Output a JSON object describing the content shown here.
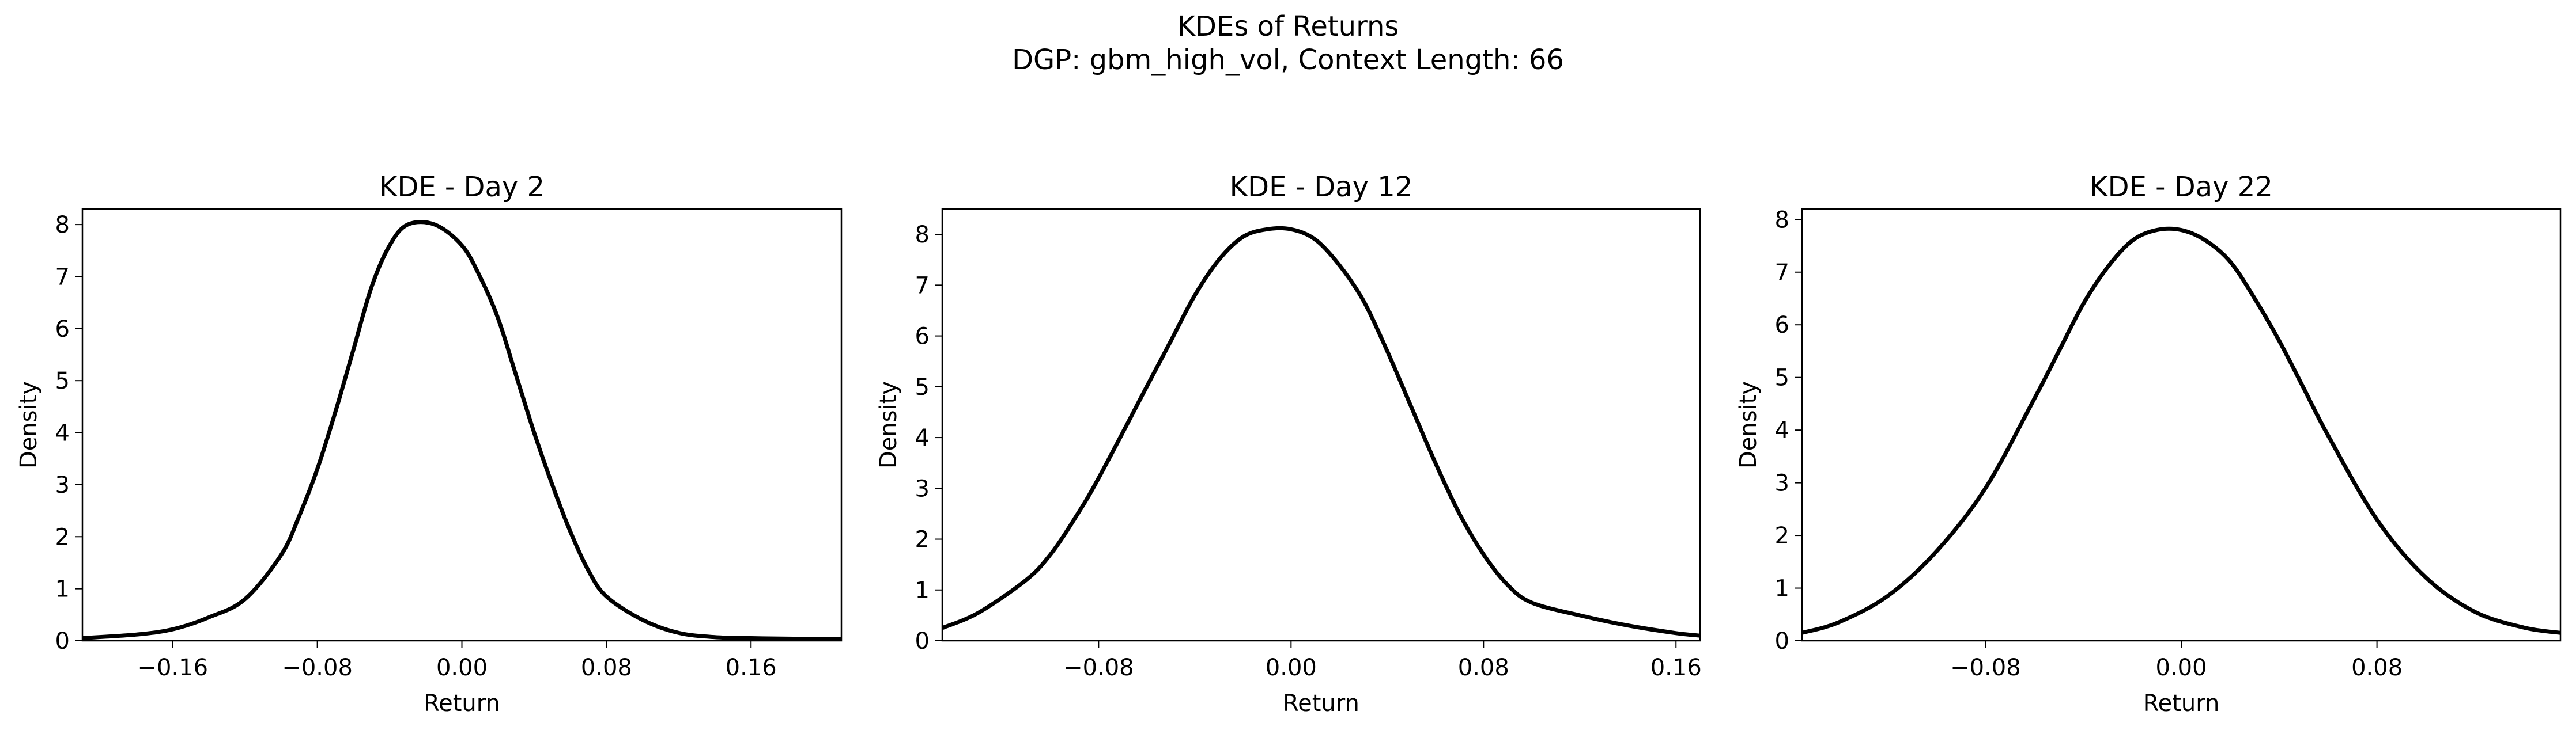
{
  "figure": {
    "title_line1": "KDEs of Returns",
    "title_line2": "DGP: gbm_high_vol, Context Length: 66"
  },
  "chart_data": [
    {
      "type": "line",
      "title": "KDE - Day 2",
      "xlabel": "Return",
      "ylabel": "Density",
      "xlim": [
        -0.21,
        0.21
      ],
      "ylim": [
        0,
        8.3
      ],
      "xticks": [
        -0.16,
        -0.08,
        0.0,
        0.08,
        0.16
      ],
      "xtick_labels": [
        "−0.16",
        "−0.08",
        "0.00",
        "0.08",
        "0.16"
      ],
      "yticks": [
        0,
        1,
        2,
        3,
        4,
        5,
        6,
        7,
        8
      ],
      "ytick_labels": [
        "0",
        "1",
        "2",
        "3",
        "4",
        "5",
        "6",
        "7",
        "8"
      ],
      "grid": false,
      "series": [
        {
          "color": "#000000",
          "x": [
            -0.21,
            -0.18,
            -0.16,
            -0.14,
            -0.12,
            -0.1,
            -0.09,
            -0.08,
            -0.07,
            -0.06,
            -0.05,
            -0.04,
            -0.03,
            -0.015,
            0.0,
            0.01,
            0.02,
            0.03,
            0.04,
            0.05,
            0.06,
            0.07,
            0.08,
            0.1,
            0.12,
            0.14,
            0.16,
            0.18,
            0.21
          ],
          "y": [
            0.05,
            0.12,
            0.22,
            0.45,
            0.8,
            1.65,
            2.4,
            3.3,
            4.4,
            5.6,
            6.8,
            7.6,
            8.0,
            8.0,
            7.6,
            7.0,
            6.2,
            5.1,
            4.0,
            3.0,
            2.1,
            1.35,
            0.85,
            0.4,
            0.15,
            0.07,
            0.05,
            0.04,
            0.03
          ]
        }
      ]
    },
    {
      "type": "line",
      "title": "KDE - Day 12",
      "xlabel": "Return",
      "ylabel": "Density",
      "xlim": [
        -0.145,
        0.17
      ],
      "ylim": [
        0,
        8.5
      ],
      "xticks": [
        -0.08,
        0.0,
        0.08,
        0.16
      ],
      "xtick_labels": [
        "−0.08",
        "0.00",
        "0.08",
        "0.16"
      ],
      "yticks": [
        0,
        1,
        2,
        3,
        4,
        5,
        6,
        7,
        8
      ],
      "ytick_labels": [
        "0",
        "1",
        "2",
        "3",
        "4",
        "5",
        "6",
        "7",
        "8"
      ],
      "grid": false,
      "series": [
        {
          "color": "#000000",
          "x": [
            -0.145,
            -0.13,
            -0.11,
            -0.1,
            -0.09,
            -0.08,
            -0.06,
            -0.05,
            -0.04,
            -0.03,
            -0.02,
            -0.01,
            0.0,
            0.01,
            0.02,
            0.03,
            0.04,
            0.05,
            0.06,
            0.07,
            0.08,
            0.09,
            0.1,
            0.12,
            0.14,
            0.16,
            0.17
          ],
          "y": [
            0.25,
            0.55,
            1.2,
            1.7,
            2.4,
            3.2,
            5.0,
            5.9,
            6.8,
            7.5,
            7.95,
            8.1,
            8.1,
            7.9,
            7.4,
            6.7,
            5.7,
            4.6,
            3.5,
            2.5,
            1.7,
            1.1,
            0.75,
            0.5,
            0.3,
            0.15,
            0.1
          ]
        }
      ]
    },
    {
      "type": "line",
      "title": "KDE - Day 22",
      "xlabel": "Return",
      "ylabel": "Density",
      "xlim": [
        -0.155,
        0.155
      ],
      "ylim": [
        0,
        8.2
      ],
      "xticks": [
        -0.08,
        0.0,
        0.08
      ],
      "xtick_labels": [
        "−0.08",
        "0.00",
        "0.08"
      ],
      "yticks": [
        0,
        1,
        2,
        3,
        4,
        5,
        6,
        7,
        8
      ],
      "ytick_labels": [
        "0",
        "1",
        "2",
        "3",
        "4",
        "5",
        "6",
        "7",
        "8"
      ],
      "grid": false,
      "series": [
        {
          "color": "#000000",
          "x": [
            -0.155,
            -0.14,
            -0.12,
            -0.1,
            -0.08,
            -0.06,
            -0.05,
            -0.04,
            -0.03,
            -0.02,
            -0.01,
            0.0,
            0.01,
            0.02,
            0.03,
            0.04,
            0.05,
            0.06,
            0.08,
            0.1,
            0.12,
            0.14,
            0.155
          ],
          "y": [
            0.15,
            0.35,
            0.85,
            1.7,
            2.9,
            4.6,
            5.5,
            6.4,
            7.1,
            7.6,
            7.8,
            7.8,
            7.6,
            7.2,
            6.5,
            5.7,
            4.8,
            3.9,
            2.3,
            1.2,
            0.55,
            0.25,
            0.15
          ]
        }
      ]
    }
  ]
}
